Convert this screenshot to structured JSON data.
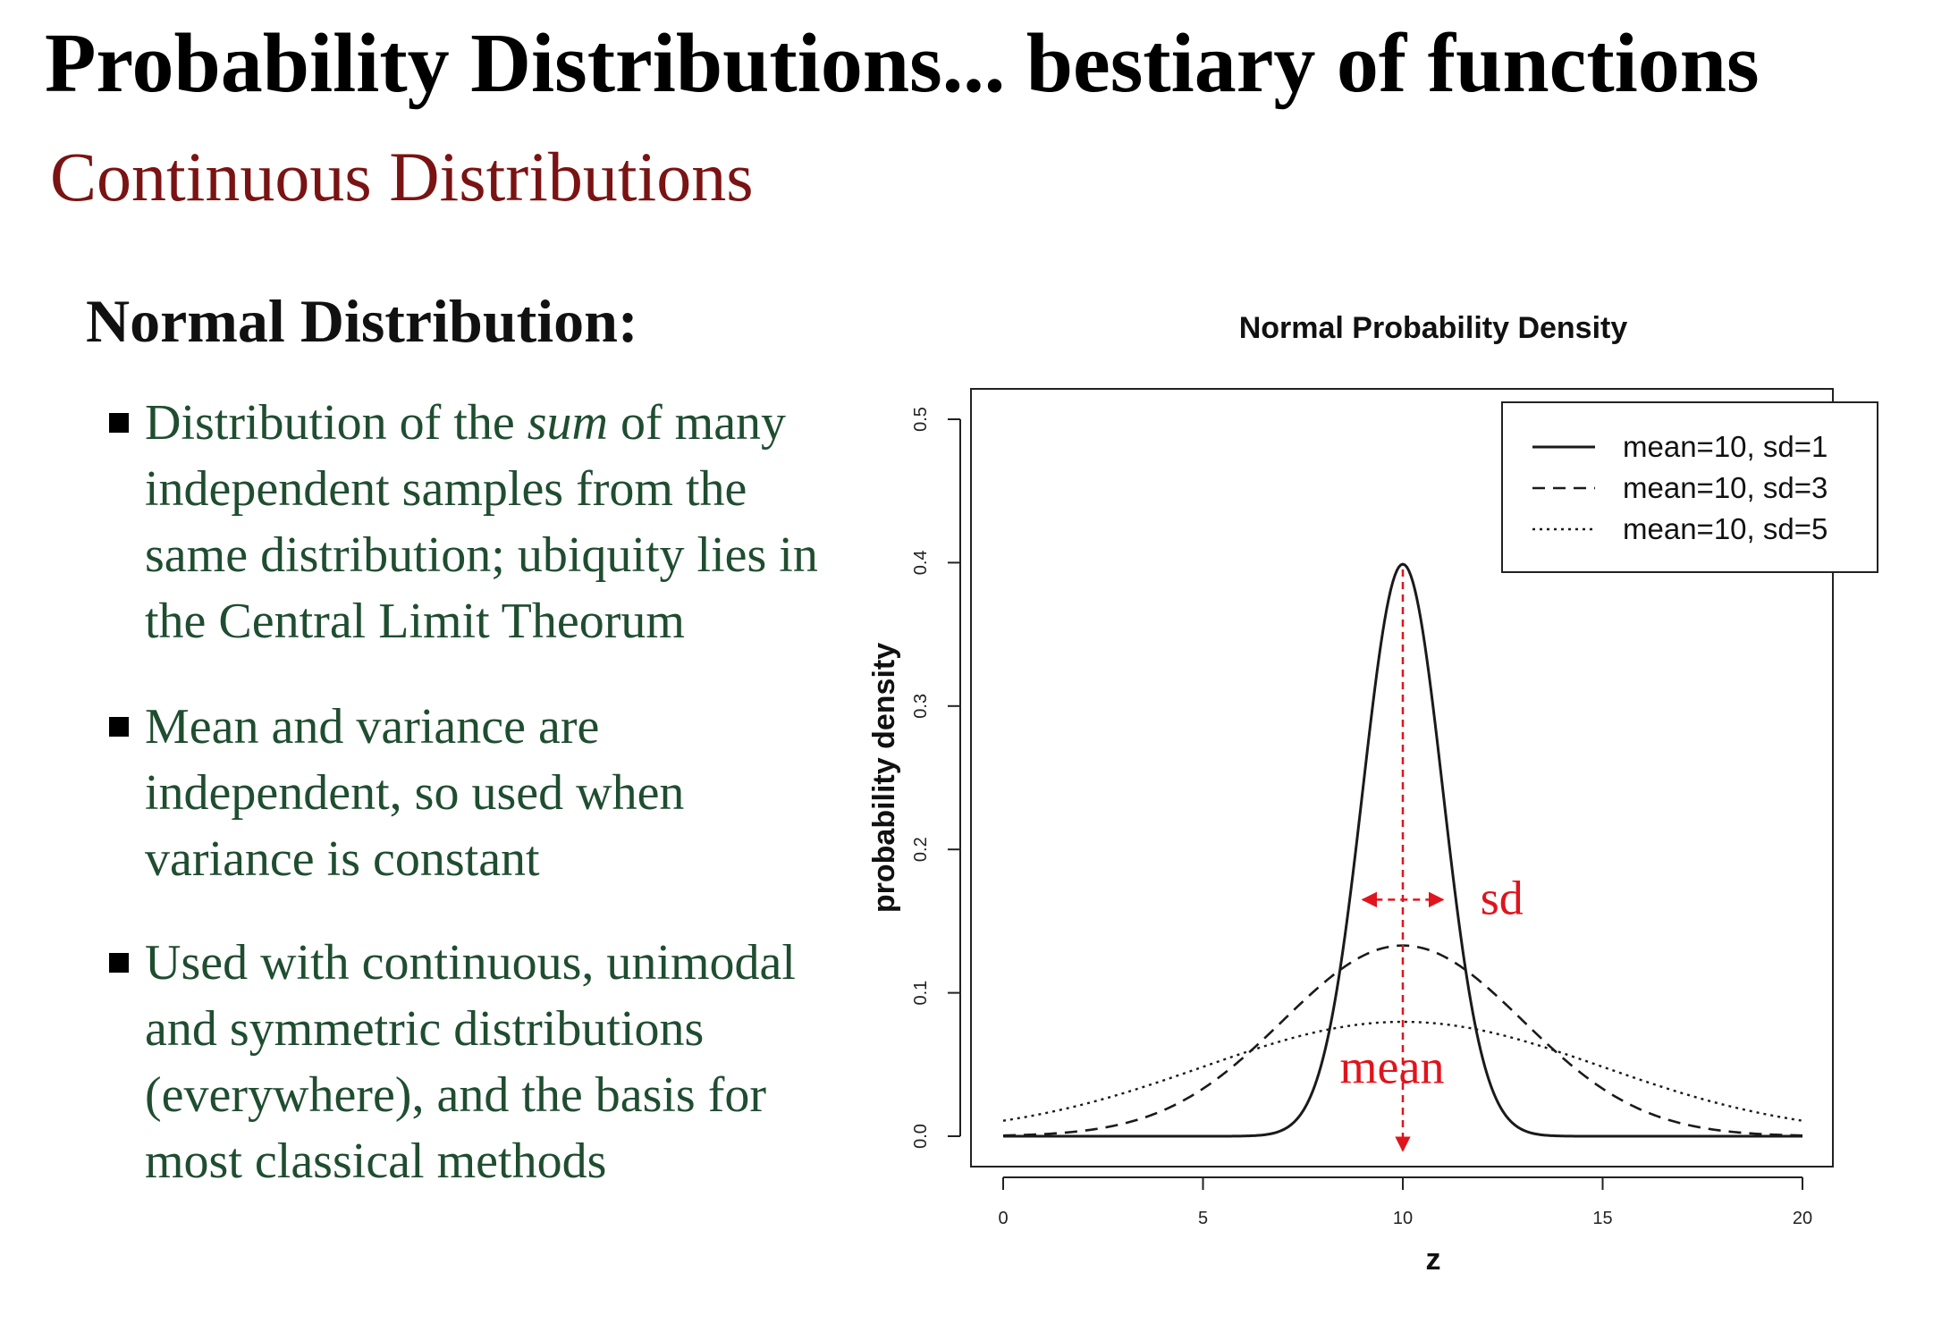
{
  "slide": {
    "title": "Probability Distributions... bestiary of functions",
    "subtitle": "Continuous Distributions",
    "section_heading": "Normal Distribution:",
    "bullets": [
      {
        "before": "Distribution of the ",
        "emphasis": "sum",
        "after": " of many independent samples from the same distribution; ubiquity lies in the Central Limit Theorum"
      },
      {
        "before": "Mean and variance are independent, so used when variance is constant",
        "emphasis": "",
        "after": ""
      },
      {
        "before": "Used with continuous, unimodal and symmetric distributions (everywhere), and the basis for most classical methods",
        "emphasis": "",
        "after": ""
      }
    ]
  },
  "colors": {
    "title": "#000000",
    "subtitle": "#7a1313",
    "bullet_text": "#1f4d30",
    "annotation": "#e0141c"
  },
  "chart_data": {
    "type": "line",
    "title": "Normal Probability Density",
    "xlabel": "z",
    "ylabel": "probability density",
    "xlim": [
      0,
      20
    ],
    "ylim": [
      0,
      0.5
    ],
    "x_ticks": [
      0,
      5,
      10,
      15,
      20
    ],
    "y_ticks": [
      0.0,
      0.1,
      0.2,
      0.3,
      0.4,
      0.5
    ],
    "x_tick_labels": [
      "0",
      "5",
      "10",
      "15",
      "20"
    ],
    "y_tick_labels": [
      "0.0",
      "0.1",
      "0.2",
      "0.3",
      "0.4",
      "0.5"
    ],
    "grid": false,
    "legend_position": "top-right",
    "series": [
      {
        "name": "mean=10, sd=1",
        "style": "solid",
        "distribution": "normal",
        "mean": 10,
        "sd": 1,
        "peak": 0.399
      },
      {
        "name": "mean=10, sd=3",
        "style": "dashed",
        "distribution": "normal",
        "mean": 10,
        "sd": 3,
        "peak": 0.133
      },
      {
        "name": "mean=10, sd=5",
        "style": "dotted",
        "distribution": "normal",
        "mean": 10,
        "sd": 5,
        "peak": 0.08
      }
    ],
    "annotations": [
      {
        "text": "sd",
        "kind": "double-arrow",
        "x_from": 9,
        "x_to": 11,
        "y": 0.165,
        "color": "#e0141c"
      },
      {
        "text": "mean",
        "kind": "dashed-arrow-down",
        "x": 10,
        "y_from": 0.399,
        "y_to": 0,
        "color": "#e0141c"
      }
    ]
  }
}
